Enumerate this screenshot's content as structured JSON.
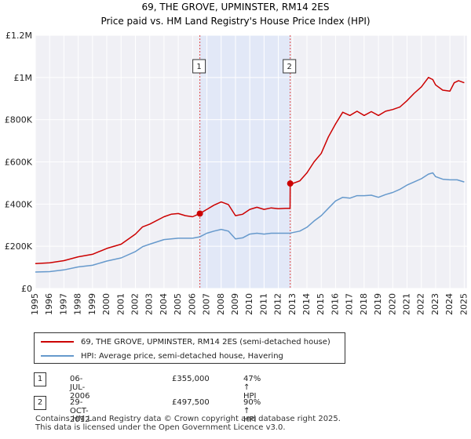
{
  "chart_data": {
    "type": "line",
    "title": "69, THE GROVE, UPMINSTER, RM14 2ES",
    "subtitle": "Price paid vs. HM Land Registry's House Price Index (HPI)",
    "xlim": [
      1995,
      2025.2
    ],
    "ylim": [
      0,
      1200000
    ],
    "y_ticks": [
      {
        "value": 0,
        "label": "£0"
      },
      {
        "value": 200000,
        "label": "£200K"
      },
      {
        "value": 400000,
        "label": "£400K"
      },
      {
        "value": 600000,
        "label": "£600K"
      },
      {
        "value": 800000,
        "label": "£800K"
      },
      {
        "value": 1000000,
        "label": "£1M"
      },
      {
        "value": 1200000,
        "label": "£1.2M"
      }
    ],
    "x_ticks": [
      "1995",
      "1996",
      "1997",
      "1998",
      "1999",
      "2000",
      "2001",
      "2002",
      "2003",
      "2004",
      "2005",
      "2006",
      "2007",
      "2008",
      "2009",
      "2010",
      "2011",
      "2012",
      "2013",
      "2014",
      "2015",
      "2016",
      "2017",
      "2018",
      "2019",
      "2020",
      "2021",
      "2022",
      "2023",
      "2024",
      "2025"
    ],
    "grid": true,
    "shaded_range": [
      2006.51,
      2012.83
    ],
    "series": [
      {
        "name": "69, THE GROVE, UPMINSTER, RM14 2ES (semi-detached house)",
        "color": "#cc0000",
        "x": [
          1995.0,
          1996.0,
          1997.0,
          1998.0,
          1999.0,
          2000.0,
          2001.0,
          2002.0,
          2002.5,
          2003.0,
          2004.0,
          2004.5,
          2005.0,
          2005.5,
          2006.0,
          2006.51,
          2007.0,
          2007.5,
          2008.0,
          2008.5,
          2009.0,
          2009.5,
          2010.0,
          2010.5,
          2011.0,
          2011.5,
          2012.0,
          2012.5,
          2012.82,
          2012.83,
          2013.0,
          2013.5,
          2014.0,
          2014.5,
          2015.0,
          2015.5,
          2016.0,
          2016.5,
          2017.0,
          2017.5,
          2018.0,
          2018.5,
          2019.0,
          2019.5,
          2020.0,
          2020.5,
          2021.0,
          2021.5,
          2022.0,
          2022.5,
          2022.8,
          2023.0,
          2023.5,
          2024.0,
          2024.3,
          2024.6,
          2025.0
        ],
        "y": [
          118000,
          122000,
          132000,
          150000,
          162000,
          190000,
          210000,
          258000,
          292000,
          305000,
          340000,
          352000,
          355000,
          345000,
          340000,
          355000,
          375000,
          395000,
          410000,
          398000,
          345000,
          352000,
          375000,
          385000,
          375000,
          382000,
          378000,
          380000,
          380000,
          497500,
          497500,
          510000,
          548000,
          600000,
          640000,
          718000,
          780000,
          835000,
          820000,
          840000,
          820000,
          838000,
          820000,
          840000,
          848000,
          860000,
          890000,
          925000,
          955000,
          1000000,
          990000,
          965000,
          940000,
          935000,
          975000,
          985000,
          975000
        ]
      },
      {
        "name": "HPI: Average price, semi-detached house, Havering",
        "color": "#6699cc",
        "x": [
          1995.0,
          1996.0,
          1997.0,
          1998.0,
          1999.0,
          2000.0,
          2001.0,
          2002.0,
          2002.5,
          2003.0,
          2004.0,
          2005.0,
          2006.0,
          2006.51,
          2007.0,
          2007.5,
          2008.0,
          2008.5,
          2009.0,
          2009.5,
          2010.0,
          2010.5,
          2011.0,
          2011.5,
          2012.0,
          2012.83,
          2013.0,
          2013.5,
          2014.0,
          2014.5,
          2015.0,
          2015.5,
          2016.0,
          2016.5,
          2017.0,
          2017.5,
          2018.0,
          2018.5,
          2019.0,
          2019.5,
          2020.0,
          2020.5,
          2021.0,
          2021.5,
          2022.0,
          2022.5,
          2022.8,
          2023.0,
          2023.5,
          2024.0,
          2024.5,
          2025.0
        ],
        "y": [
          78000,
          80000,
          88000,
          102000,
          110000,
          130000,
          145000,
          175000,
          198000,
          210000,
          232000,
          238000,
          238000,
          245000,
          262000,
          272000,
          280000,
          272000,
          235000,
          240000,
          258000,
          262000,
          258000,
          262000,
          262000,
          262000,
          265000,
          272000,
          290000,
          320000,
          345000,
          380000,
          415000,
          432000,
          428000,
          440000,
          440000,
          442000,
          432000,
          445000,
          455000,
          470000,
          490000,
          505000,
          520000,
          542000,
          548000,
          530000,
          518000,
          515000,
          515000,
          505000
        ]
      }
    ],
    "annotations": [
      {
        "label": "1",
        "x": 2006.51,
        "y": 355000
      },
      {
        "label": "2",
        "x": 2012.83,
        "y": 497500
      }
    ]
  },
  "legend": {
    "line1": "69, THE GROVE, UPMINSTER, RM14 2ES (semi-detached house)",
    "line2": "HPI: Average price, semi-detached house, Havering"
  },
  "transactions": [
    {
      "num": "1",
      "date": "06-JUL-2006",
      "price": "£355,000",
      "hpi": "47% ↑ HPI"
    },
    {
      "num": "2",
      "date": "29-OCT-2012",
      "price": "£497,500",
      "hpi": "90% ↑ HPI"
    }
  ],
  "footer": {
    "line1": "Contains HM Land Registry data © Crown copyright and database right 2025.",
    "line2": "This data is licensed under the Open Government Licence v3.0."
  }
}
